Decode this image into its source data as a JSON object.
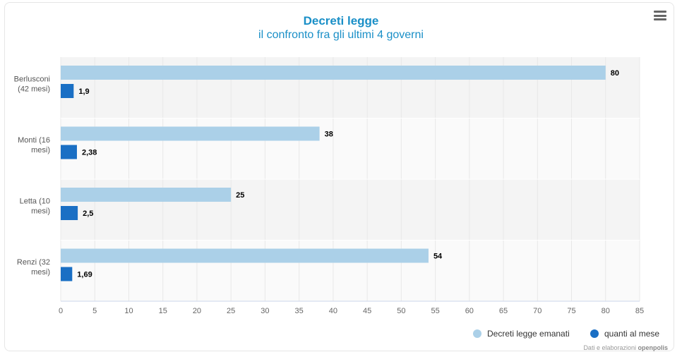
{
  "header": {
    "title": "Decreti legge",
    "subtitle": "il confronto fra gli ultimi 4 governi"
  },
  "menu": {
    "icon": "hamburger-menu-icon"
  },
  "chart_data": {
    "type": "bar",
    "orientation": "horizontal",
    "categories": [
      [
        "Berlusconi",
        "(42 mesi)"
      ],
      [
        "Monti (16",
        "mesi)"
      ],
      [
        "Letta (10",
        "mesi)"
      ],
      [
        "Renzi (32",
        "mesi)"
      ]
    ],
    "series": [
      {
        "name": "Decreti legge emanati",
        "color": "#abd0e8",
        "values": [
          80,
          38,
          25,
          54
        ],
        "labels": [
          "80",
          "38",
          "25",
          "54"
        ]
      },
      {
        "name": "quanti al mese",
        "color": "#1a6fc4",
        "values": [
          1.9,
          2.38,
          2.5,
          1.69
        ],
        "labels": [
          "1,9",
          "2,38",
          "2,5",
          "1,69"
        ]
      }
    ],
    "xlim": [
      0,
      85
    ],
    "xticks": [
      0,
      5,
      10,
      15,
      20,
      25,
      30,
      35,
      40,
      45,
      50,
      55,
      60,
      65,
      70,
      75,
      80,
      85
    ],
    "grid": true,
    "legend_position": "bottom-right"
  },
  "credits": {
    "text": "Dati e elaborazioni",
    "brand": "openpolis"
  }
}
